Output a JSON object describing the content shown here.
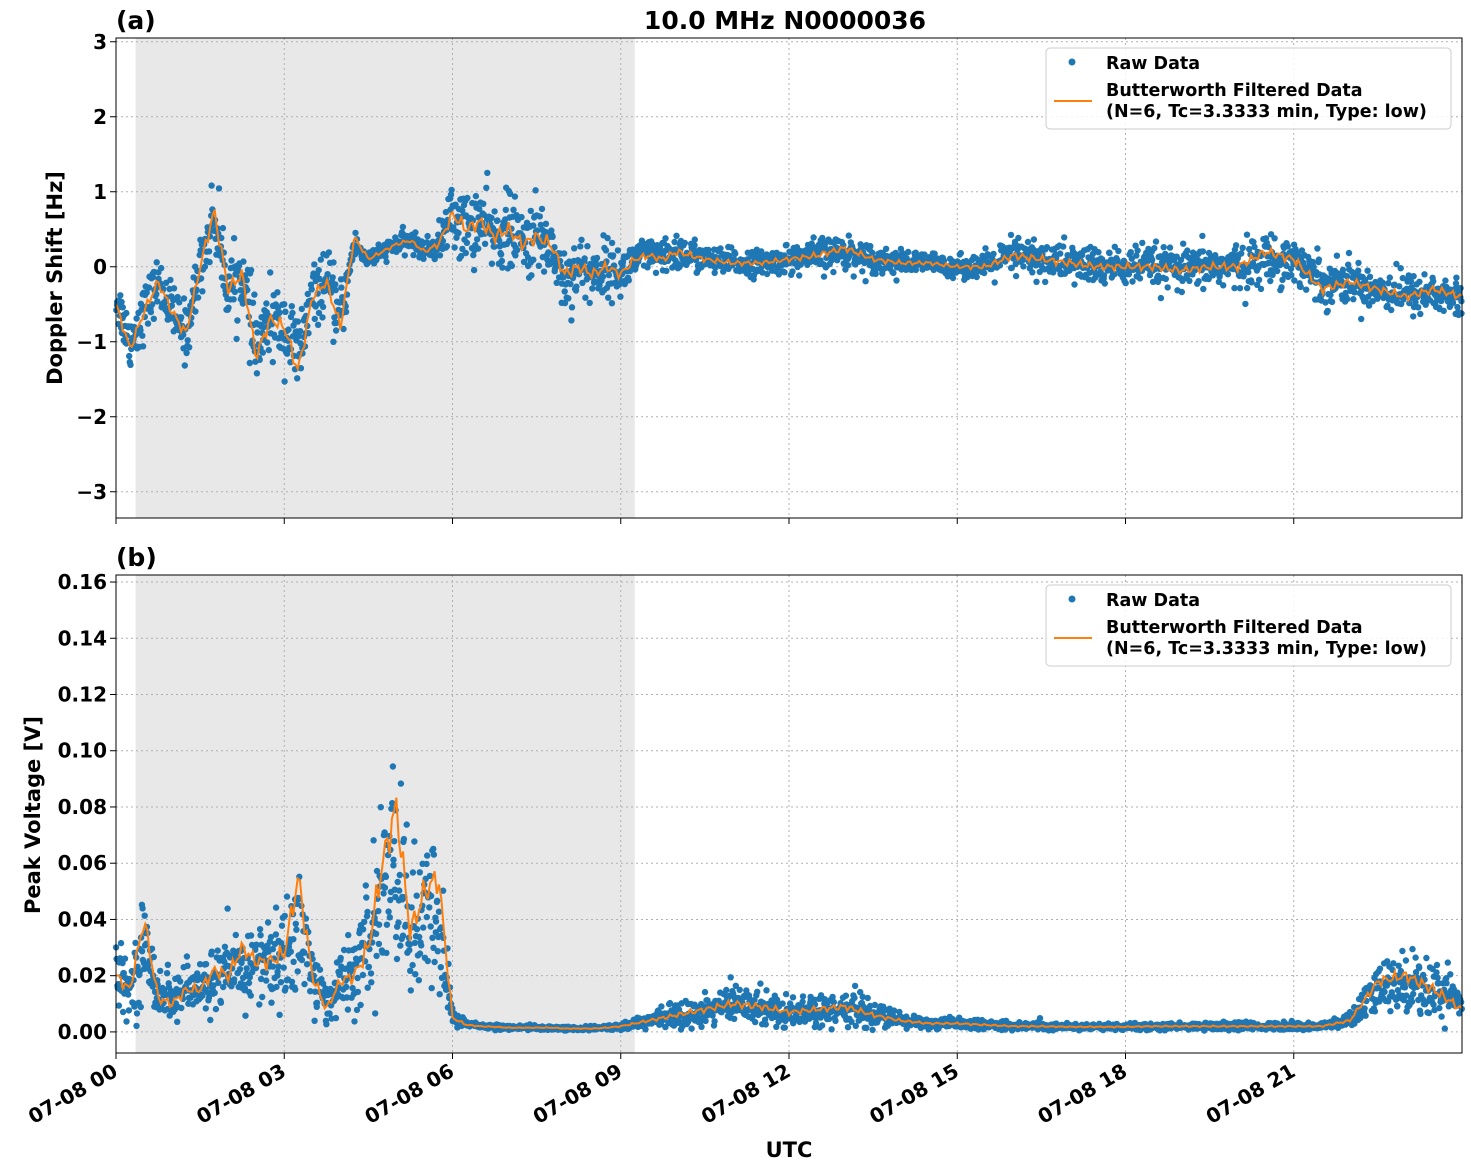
{
  "title": "10.0 MHz N0000036",
  "xlabel": "UTC",
  "colors": {
    "raw": "#1f77b4",
    "filtered": "#ff7f0e",
    "night_shade": "#e8e8e8"
  },
  "x_ticks": [
    "07-08 00",
    "07-08 03",
    "07-08 06",
    "07-08 09",
    "07-08 12",
    "07-08 15",
    "07-08 18",
    "07-08 21"
  ],
  "chart_data": [
    {
      "type": "scatter",
      "panel_label": "(a)",
      "ylabel": "Doppler Shift [Hz]",
      "xlim_hours": [
        0,
        24
      ],
      "ylim": [
        -3.35,
        3.05
      ],
      "y_ticks": [
        3,
        2,
        1,
        0,
        -1,
        -2,
        -3
      ],
      "y_tick_labels": [
        "3",
        "2",
        "1",
        "0",
        "−1",
        "−2",
        "−3"
      ],
      "shaded_region_hours": [
        0.35,
        9.25
      ],
      "grid": true,
      "legend_placement": "upper-right",
      "legend": {
        "raw": "Raw Data",
        "filtered_line1": "Butterworth Filtered Data",
        "filtered_line2": "(N=6, Tc=3.3333 min, Type: low)"
      },
      "series": [
        {
          "name": "Raw Data",
          "x_hours": [
            0,
            0.25,
            0.5,
            0.75,
            1.0,
            1.25,
            1.5,
            1.75,
            2.0,
            2.25,
            2.5,
            2.75,
            3.0,
            3.25,
            3.5,
            3.75,
            4.0,
            4.25,
            4.5,
            4.75,
            5.0,
            5.25,
            5.5,
            5.75,
            6.0,
            6.25,
            6.5,
            6.75,
            7.0,
            7.25,
            7.5,
            7.75,
            8.0,
            8.25,
            8.5,
            8.75,
            9.0,
            9.25,
            9.5,
            9.75,
            10.0,
            10.5,
            11.0,
            11.5,
            12.0,
            12.5,
            13.0,
            13.5,
            14.0,
            14.5,
            15.0,
            15.5,
            16.0,
            16.5,
            17.0,
            17.5,
            18.0,
            18.5,
            19.0,
            19.5,
            20.0,
            20.5,
            21.0,
            21.5,
            22.0,
            22.5,
            23.0,
            23.5,
            24.0
          ],
          "center": [
            -0.4,
            -1.0,
            -0.6,
            -0.2,
            -0.6,
            -0.9,
            0.0,
            0.7,
            -0.3,
            -0.1,
            -1.1,
            -0.7,
            -0.8,
            -1.2,
            -0.4,
            -0.2,
            -0.7,
            0.3,
            0.1,
            0.2,
            0.3,
            0.35,
            0.2,
            0.3,
            0.7,
            0.5,
            0.6,
            0.4,
            0.5,
            0.3,
            0.4,
            0.3,
            -0.2,
            0.0,
            -0.1,
            0.0,
            -0.1,
            0.1,
            0.15,
            0.1,
            0.2,
            0.1,
            0.05,
            0.05,
            0.1,
            0.15,
            0.2,
            0.1,
            0.05,
            0.05,
            0.0,
            0.0,
            0.15,
            0.1,
            0.05,
            0.0,
            0.0,
            0.0,
            -0.05,
            0.0,
            0.0,
            0.1,
            0.1,
            -0.2,
            -0.2,
            -0.3,
            -0.35,
            -0.35,
            -0.45
          ],
          "spread": [
            0.35,
            0.4,
            0.4,
            0.35,
            0.4,
            0.45,
            0.4,
            0.55,
            0.5,
            0.5,
            0.6,
            0.5,
            0.55,
            0.7,
            0.4,
            0.45,
            0.5,
            0.2,
            0.15,
            0.12,
            0.15,
            0.15,
            0.15,
            0.25,
            0.5,
            0.55,
            0.55,
            0.5,
            0.55,
            0.5,
            0.55,
            0.5,
            0.5,
            0.45,
            0.45,
            0.4,
            0.35,
            0.3,
            0.25,
            0.25,
            0.3,
            0.2,
            0.2,
            0.18,
            0.2,
            0.25,
            0.25,
            0.2,
            0.18,
            0.15,
            0.15,
            0.2,
            0.3,
            0.28,
            0.3,
            0.28,
            0.28,
            0.3,
            0.3,
            0.3,
            0.35,
            0.35,
            0.35,
            0.35,
            0.3,
            0.3,
            0.3,
            0.3,
            0.3
          ]
        },
        {
          "name": "Butterworth Filtered Data",
          "x_hours": [
            0,
            0.25,
            0.5,
            0.75,
            1.0,
            1.25,
            1.5,
            1.75,
            2.0,
            2.25,
            2.5,
            2.75,
            3.0,
            3.25,
            3.5,
            3.75,
            4.0,
            4.25,
            4.5,
            4.75,
            5.0,
            5.25,
            5.5,
            5.75,
            6.0,
            6.25,
            6.5,
            6.75,
            7.0,
            7.25,
            7.5,
            7.75,
            8.0,
            8.25,
            8.5,
            8.75,
            9.0,
            9.25,
            9.5,
            9.75,
            10.0,
            10.5,
            11.0,
            11.5,
            12.0,
            12.5,
            13.0,
            13.5,
            14.0,
            14.5,
            15.0,
            15.5,
            16.0,
            16.5,
            17.0,
            17.5,
            18.0,
            18.5,
            19.0,
            19.5,
            20.0,
            20.5,
            21.0,
            21.5,
            22.0,
            22.5,
            23.0,
            23.5,
            24.0
          ],
          "values": [
            -0.5,
            -1.1,
            -0.6,
            -0.2,
            -0.6,
            -0.9,
            0.0,
            0.75,
            -0.3,
            -0.1,
            -1.2,
            -0.7,
            -0.8,
            -1.4,
            -0.4,
            -0.2,
            -0.8,
            0.4,
            0.1,
            0.2,
            0.3,
            0.35,
            0.2,
            0.3,
            0.7,
            0.5,
            0.6,
            0.4,
            0.5,
            0.3,
            0.4,
            0.3,
            -0.1,
            0.0,
            -0.1,
            0.0,
            -0.1,
            0.1,
            0.15,
            0.1,
            0.2,
            0.1,
            0.05,
            0.05,
            0.1,
            0.15,
            0.25,
            0.1,
            0.05,
            0.05,
            0.0,
            0.0,
            0.15,
            0.1,
            0.05,
            0.0,
            0.0,
            0.0,
            -0.05,
            0.0,
            0.0,
            0.2,
            0.1,
            -0.3,
            -0.2,
            -0.3,
            -0.4,
            -0.3,
            -0.4
          ]
        }
      ]
    },
    {
      "type": "scatter",
      "panel_label": "(b)",
      "ylabel": "Peak Voltage [V]",
      "xlim_hours": [
        0,
        24
      ],
      "ylim": [
        -0.0075,
        0.1625
      ],
      "y_ticks": [
        0.16,
        0.14,
        0.12,
        0.1,
        0.08,
        0.06,
        0.04,
        0.02,
        0.0
      ],
      "y_tick_labels": [
        "0.16",
        "0.14",
        "0.12",
        "0.10",
        "0.08",
        "0.06",
        "0.04",
        "0.02",
        "0.00"
      ],
      "shaded_region_hours": [
        0.35,
        9.25
      ],
      "grid": true,
      "legend_placement": "upper-right",
      "legend": {
        "raw": "Raw Data",
        "filtered_line1": "Butterworth Filtered Data",
        "filtered_line2": "(N=6, Tc=3.3333 min, Type: low)"
      },
      "series": [
        {
          "name": "Raw Data",
          "x_hours": [
            0,
            0.25,
            0.5,
            0.75,
            1.0,
            1.25,
            1.5,
            1.75,
            2.0,
            2.25,
            2.5,
            2.75,
            3.0,
            3.25,
            3.5,
            3.75,
            4.0,
            4.25,
            4.5,
            4.75,
            5.0,
            5.25,
            5.5,
            5.75,
            6.0,
            6.25,
            6.5,
            6.75,
            7.0,
            7.25,
            7.5,
            7.75,
            8.0,
            8.25,
            8.5,
            8.75,
            9.0,
            9.25,
            9.5,
            9.75,
            10.0,
            10.5,
            11.0,
            11.5,
            12.0,
            12.5,
            13.0,
            13.5,
            14.0,
            14.5,
            15.0,
            15.5,
            16.0,
            16.5,
            17.0,
            17.5,
            18.0,
            18.5,
            19.0,
            19.5,
            20.0,
            20.5,
            21.0,
            21.5,
            22.0,
            22.5,
            23.0,
            23.5,
            24.0
          ],
          "center": [
            0.02,
            0.015,
            0.03,
            0.015,
            0.012,
            0.015,
            0.015,
            0.02,
            0.02,
            0.022,
            0.025,
            0.025,
            0.025,
            0.04,
            0.02,
            0.01,
            0.018,
            0.02,
            0.03,
            0.05,
            0.06,
            0.035,
            0.04,
            0.04,
            0.005,
            0.003,
            0.002,
            0.002,
            0.0015,
            0.0015,
            0.0015,
            0.0015,
            0.0012,
            0.0012,
            0.0012,
            0.0015,
            0.002,
            0.003,
            0.004,
            0.005,
            0.006,
            0.008,
            0.01,
            0.009,
            0.007,
            0.008,
            0.009,
            0.006,
            0.004,
            0.003,
            0.003,
            0.0025,
            0.002,
            0.002,
            0.0018,
            0.0018,
            0.0018,
            0.002,
            0.002,
            0.002,
            0.002,
            0.002,
            0.002,
            0.002,
            0.004,
            0.015,
            0.018,
            0.015,
            0.01
          ],
          "spread": [
            0.012,
            0.01,
            0.02,
            0.01,
            0.01,
            0.01,
            0.01,
            0.012,
            0.015,
            0.015,
            0.015,
            0.018,
            0.02,
            0.03,
            0.015,
            0.008,
            0.012,
            0.015,
            0.025,
            0.035,
            0.04,
            0.03,
            0.03,
            0.03,
            0.004,
            0.0015,
            0.001,
            0.001,
            0.0008,
            0.0008,
            0.0008,
            0.0008,
            0.0008,
            0.0008,
            0.0008,
            0.001,
            0.0015,
            0.002,
            0.003,
            0.004,
            0.005,
            0.006,
            0.008,
            0.007,
            0.006,
            0.006,
            0.007,
            0.005,
            0.003,
            0.002,
            0.002,
            0.0018,
            0.0015,
            0.0015,
            0.0012,
            0.0012,
            0.0012,
            0.0015,
            0.0015,
            0.0015,
            0.0015,
            0.0015,
            0.0015,
            0.0015,
            0.003,
            0.01,
            0.012,
            0.012,
            0.008
          ]
        },
        {
          "name": "Butterworth Filtered Data",
          "x_hours": [
            0,
            0.25,
            0.5,
            0.75,
            1.0,
            1.25,
            1.5,
            1.75,
            2.0,
            2.25,
            2.5,
            2.75,
            3.0,
            3.25,
            3.5,
            3.75,
            4.0,
            4.25,
            4.5,
            4.75,
            5.0,
            5.25,
            5.5,
            5.75,
            6.0,
            6.25,
            6.5,
            6.75,
            7.0,
            7.25,
            7.5,
            7.75,
            8.0,
            8.25,
            8.5,
            8.75,
            9.0,
            9.25,
            9.5,
            9.75,
            10.0,
            10.5,
            11.0,
            11.5,
            12.0,
            12.5,
            13.0,
            13.5,
            14.0,
            14.5,
            15.0,
            15.5,
            16.0,
            16.5,
            17.0,
            17.5,
            18.0,
            18.5,
            19.0,
            19.5,
            20.0,
            20.5,
            21.0,
            21.5,
            22.0,
            22.5,
            23.0,
            23.5,
            24.0
          ],
          "values": [
            0.02,
            0.015,
            0.04,
            0.012,
            0.01,
            0.015,
            0.015,
            0.022,
            0.02,
            0.03,
            0.025,
            0.025,
            0.028,
            0.055,
            0.02,
            0.008,
            0.018,
            0.02,
            0.03,
            0.06,
            0.08,
            0.035,
            0.05,
            0.055,
            0.005,
            0.0025,
            0.002,
            0.0018,
            0.0015,
            0.0015,
            0.0015,
            0.0015,
            0.0012,
            0.0012,
            0.0012,
            0.0015,
            0.002,
            0.003,
            0.004,
            0.005,
            0.006,
            0.008,
            0.01,
            0.009,
            0.007,
            0.008,
            0.009,
            0.006,
            0.004,
            0.003,
            0.003,
            0.0025,
            0.002,
            0.002,
            0.0018,
            0.0018,
            0.0018,
            0.002,
            0.002,
            0.002,
            0.002,
            0.002,
            0.002,
            0.002,
            0.004,
            0.018,
            0.02,
            0.015,
            0.008
          ]
        }
      ]
    }
  ]
}
